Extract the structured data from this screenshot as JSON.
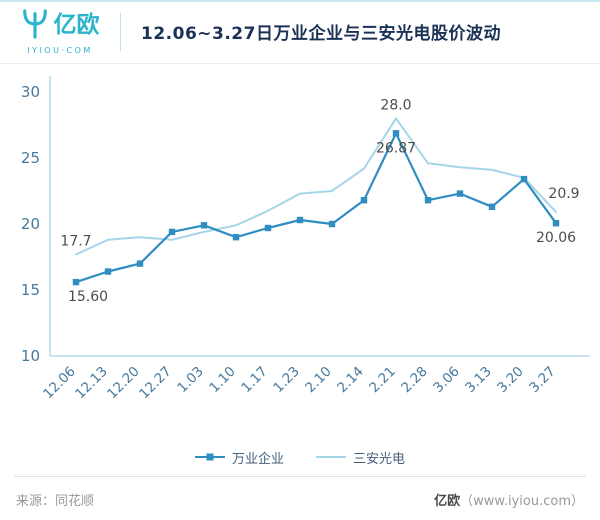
{
  "header": {
    "logo_text": "亿欧",
    "logo_sub": "IYIOU·COM",
    "title": "12.06~3.27日万业企业与三安光电股价波动"
  },
  "chart_data": {
    "type": "line",
    "title": "12.06~3.27日万业企业与三安光电股价波动",
    "categories": [
      "12.06",
      "12.13",
      "12.20",
      "12.27",
      "1.03",
      "1.10",
      "1.17",
      "1.23",
      "2.10",
      "2.14",
      "2.21",
      "2.28",
      "3.06",
      "3.13",
      "3.20",
      "3.27"
    ],
    "series": [
      {
        "name": "万业企业",
        "color": "#2f8dc1",
        "marker": "square",
        "values": [
          15.6,
          16.4,
          17.0,
          19.4,
          19.9,
          19.0,
          19.7,
          20.3,
          20.0,
          21.8,
          26.87,
          21.8,
          22.3,
          21.3,
          23.4,
          20.06
        ]
      },
      {
        "name": "三安光电",
        "color": "#a5d5e8",
        "marker": "none",
        "values": [
          17.7,
          18.8,
          19.0,
          18.8,
          19.4,
          19.9,
          21.0,
          22.3,
          22.5,
          24.2,
          28.0,
          24.6,
          24.3,
          24.1,
          23.5,
          20.9
        ]
      }
    ],
    "ylim": [
      10,
      30
    ],
    "yticks": [
      10,
      15,
      20,
      25,
      30
    ],
    "grid": false,
    "legend_position": "bottom",
    "annotations": [
      {
        "series": 1,
        "index": 0,
        "text": "17.7",
        "position": "above"
      },
      {
        "series": 0,
        "index": 0,
        "text": "15.60",
        "position": "below-right"
      },
      {
        "series": 1,
        "index": 10,
        "text": "28.0",
        "position": "above"
      },
      {
        "series": 0,
        "index": 10,
        "text": "26.87",
        "position": "below"
      },
      {
        "series": 1,
        "index": 15,
        "text": "20.9",
        "position": "right-above"
      },
      {
        "series": 0,
        "index": 15,
        "text": "20.06",
        "position": "below"
      }
    ]
  },
  "footer": {
    "source": "来源：同花顺",
    "brand": "亿欧",
    "brand_url": "（www.iyiou.com）"
  },
  "colors": {
    "brand_teal": "#2ab5cd",
    "title_navy": "#1c3156",
    "axis_line": "#b5dcea",
    "axis_text": "#47799b",
    "annotation_text": "#4d4d4d"
  }
}
